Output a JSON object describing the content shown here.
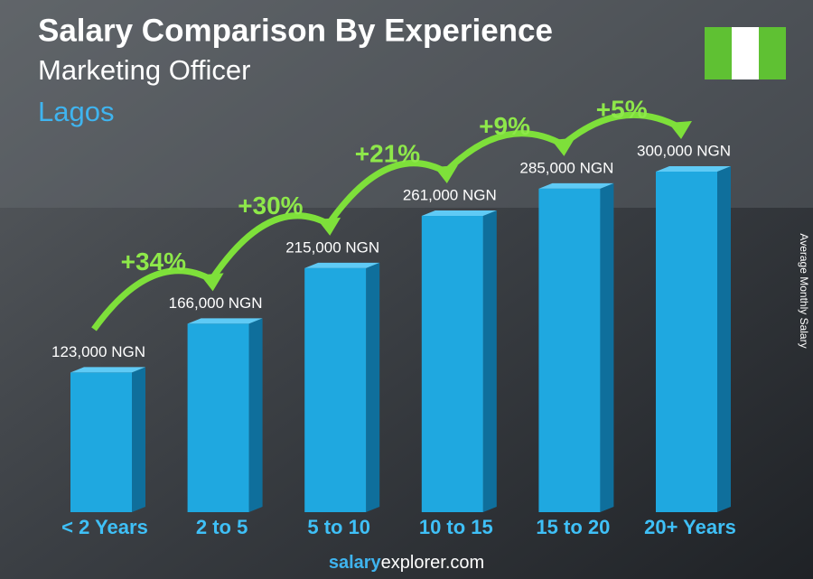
{
  "chart_data": {
    "type": "bar3d",
    "title": "Salary Comparison By Experience",
    "subtitle": "Marketing Officer",
    "location": "Lagos",
    "y_axis_label": "Average Monthly Salary",
    "categories": [
      "< 2 Years",
      "2 to 5",
      "5 to 10",
      "10 to 15",
      "15 to 20",
      "20+ Years"
    ],
    "values": [
      123000,
      166000,
      215000,
      261000,
      285000,
      300000
    ],
    "value_labels": [
      "123,000 NGN",
      "166,000 NGN",
      "215,000 NGN",
      "261,000 NGN",
      "285,000 NGN",
      "300,000 NGN"
    ],
    "increase_labels": [
      "+34%",
      "+30%",
      "+21%",
      "+9%",
      "+5%"
    ],
    "color": "#1fa8e0",
    "footer": {
      "bold": "salary",
      "rest": "explorer.com"
    }
  }
}
